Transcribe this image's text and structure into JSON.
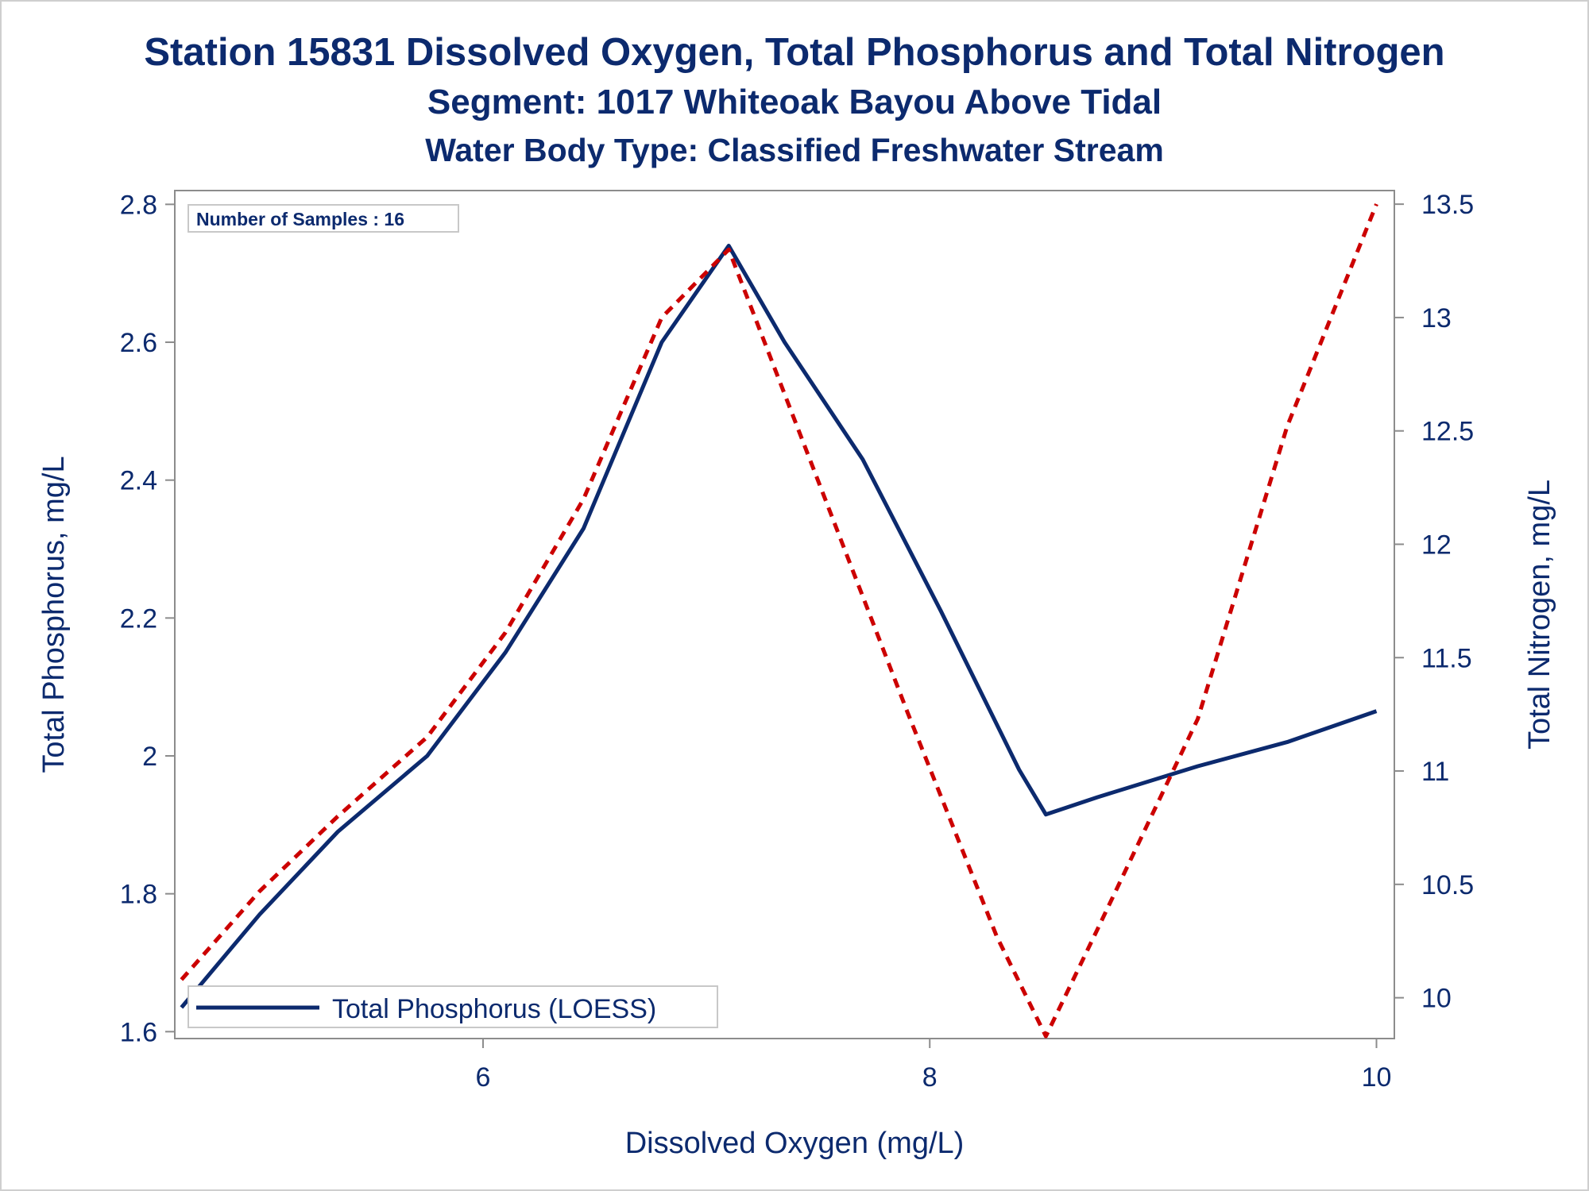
{
  "titles": {
    "line1": "Station 15831  Dissolved Oxygen, Total Phosphorus and Total Nitrogen",
    "line2": "Segment: 1017  Whiteoak Bayou Above Tidal",
    "line3": "Water Body Type: Classified Freshwater Stream"
  },
  "annotation": "Number of Samples : 16",
  "colors": {
    "text": "#0c2a6e",
    "phosphorus": "#0c2a6e",
    "nitrogen": "#cc0000",
    "frame": "#8c8c8c"
  },
  "chart_data": {
    "type": "line",
    "xlabel": "Dissolved Oxygen (mg/L)",
    "ylabel": "Total Phosphorus, mg/L",
    "y2label": "Total Nitrogen, mg/L",
    "xlim": [
      4.62,
      10.08
    ],
    "ylim": [
      1.59,
      2.82
    ],
    "y2lim": [
      9.82,
      13.56
    ],
    "xticks": [
      6,
      8,
      10
    ],
    "yticks": [
      1.6,
      1.8,
      2,
      2.2,
      2.4,
      2.6,
      2.8
    ],
    "y2ticks": [
      10,
      10.5,
      11,
      11.5,
      12,
      12.5,
      13,
      13.5
    ],
    "xtick_labels": [
      "6",
      "8",
      "10"
    ],
    "ytick_labels": [
      "1.6",
      "1.8",
      "2",
      "2.2",
      "2.4",
      "2.6",
      "2.8"
    ],
    "y2tick_labels": [
      "10",
      "10.5",
      "11",
      "11.5",
      "12",
      "12.5",
      "13",
      "13.5"
    ],
    "legend": {
      "position": "bottom-left",
      "entries": [
        "Total Phosphorus (LOESS)"
      ]
    },
    "series": [
      {
        "name": "Total Phosphorus (LOESS)",
        "axis": "left",
        "style": "solid",
        "x": [
          4.65,
          5.0,
          5.35,
          5.75,
          6.1,
          6.45,
          6.8,
          7.1,
          7.35,
          7.7,
          8.05,
          8.4,
          8.52,
          8.75,
          9.2,
          9.6,
          10.0
        ],
        "y": [
          1.635,
          1.77,
          1.89,
          2.0,
          2.15,
          2.33,
          2.6,
          2.74,
          2.6,
          2.43,
          2.21,
          1.98,
          1.915,
          1.94,
          1.985,
          2.02,
          2.065
        ]
      },
      {
        "name": "",
        "axis": "right",
        "style": "dashed",
        "x": [
          4.65,
          5.0,
          5.35,
          5.75,
          6.1,
          6.45,
          6.8,
          7.1,
          7.5,
          7.9,
          8.3,
          8.52,
          8.75,
          9.2,
          9.6,
          10.0
        ],
        "y": [
          10.08,
          10.47,
          10.8,
          11.15,
          11.61,
          12.2,
          13.0,
          13.3,
          12.28,
          11.26,
          10.27,
          9.83,
          10.3,
          11.23,
          12.52,
          13.5
        ]
      }
    ]
  }
}
